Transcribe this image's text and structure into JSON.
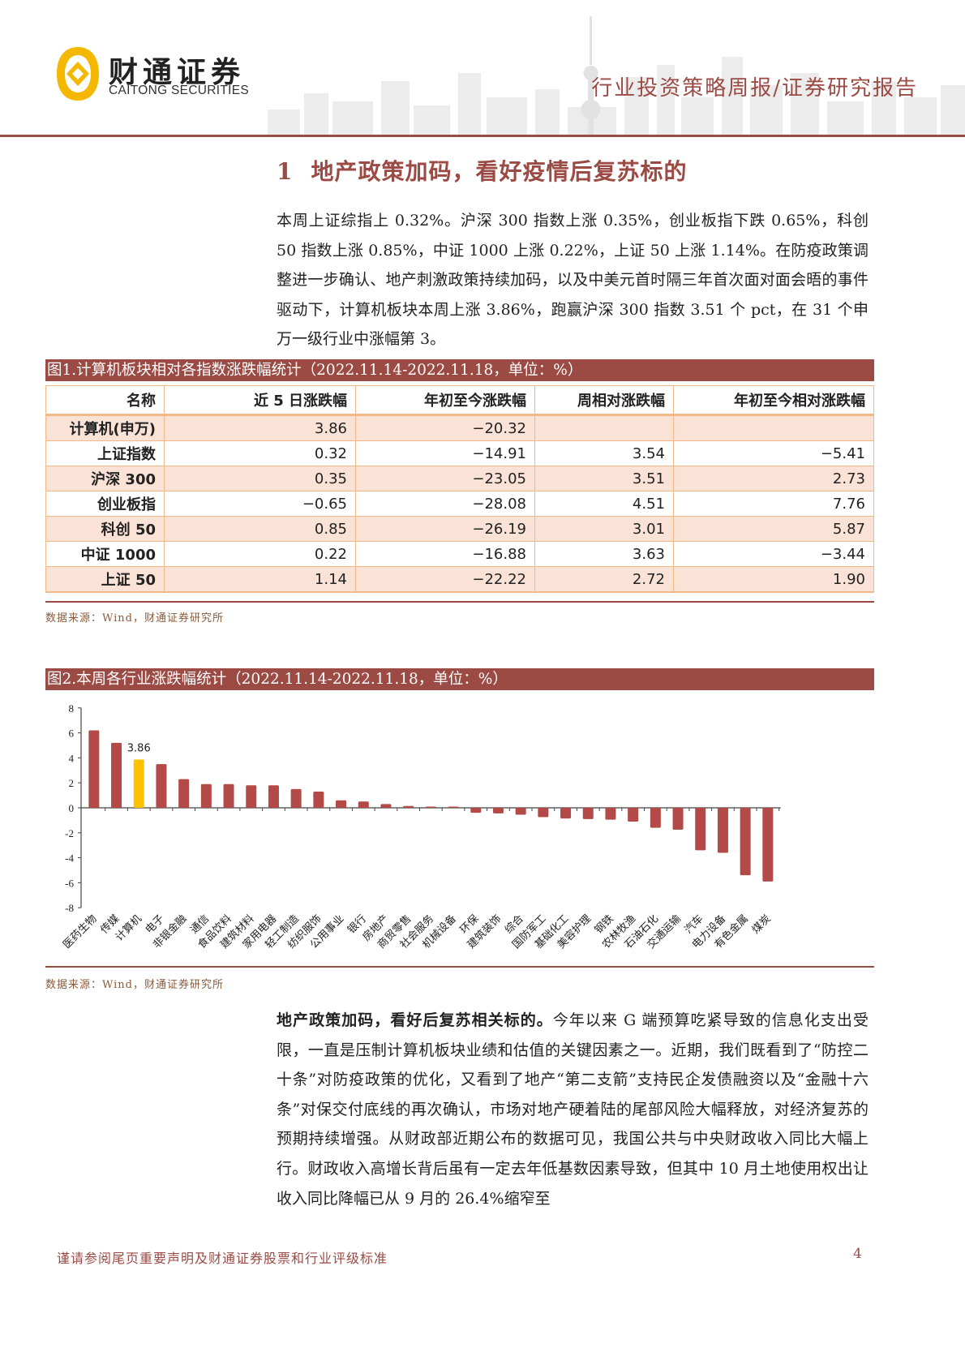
{
  "header": {
    "logo_cn": "财通证券",
    "logo_en": "CAITONG SECURITIES",
    "report_type": "行业投资策略周报/证券研究报告",
    "colors": {
      "brand_red": "#9b4a44",
      "logo_yellow": "#f5b800"
    }
  },
  "section": {
    "number": "1",
    "title": "地产政策加码，看好疫情后复苏标的"
  },
  "paragraph1": "本周上证综指上 0.32%。沪深 300 指数上涨 0.35%，创业板指下跌 0.65%，科创 50 指数上涨 0.85%，中证 1000 上涨 0.22%，上证 50 上涨 1.14%。在防疫政策调整进一步确认、地产刺激政策持续加码，以及中美元首时隔三年首次面对面会晤的事件驱动下，计算机板块本周上涨 3.86%，跑赢沪深 300 指数 3.51 个 pct，在 31 个申万一级行业中涨幅第 3。",
  "figure1": {
    "title": "图1.计算机板块相对各指数涨跌幅统计（2022.11.14-2022.11.18，单位：%）",
    "columns": [
      "名称",
      "近 5 日涨跌幅",
      "年初至今涨跌幅",
      "周相对涨跌幅",
      "年初至今相对涨跌幅"
    ],
    "rows": [
      [
        "计算机(申万)",
        "3.86",
        "−20.32",
        "",
        ""
      ],
      [
        "上证指数",
        "0.32",
        "−14.91",
        "3.54",
        "−5.41"
      ],
      [
        "沪深 300",
        "0.35",
        "−23.05",
        "3.51",
        "2.73"
      ],
      [
        "创业板指",
        "−0.65",
        "−28.08",
        "4.51",
        "7.76"
      ],
      [
        "科创 50",
        "0.85",
        "−26.19",
        "3.01",
        "5.87"
      ],
      [
        "中证 1000",
        "0.22",
        "−16.88",
        "3.63",
        "−3.44"
      ],
      [
        "上证 50",
        "1.14",
        "−22.22",
        "2.72",
        "1.90"
      ]
    ],
    "source": "数据来源：Wind，财通证券研究所"
  },
  "figure2": {
    "title": "图2.本周各行业涨跌幅统计（2022.11.14-2022.11.18，单位：%）",
    "source": "数据来源：Wind，财通证券研究所",
    "highlight_label": "3.86",
    "bar_color": "#b34a47",
    "highlight_color": "#ffc000"
  },
  "chart_data": {
    "type": "bar",
    "title": "本周各行业涨跌幅统计（2022.11.14-2022.11.18，单位：%）",
    "xlabel": "",
    "ylabel": "",
    "ylim": [
      -8,
      8
    ],
    "yticks": [
      8,
      6,
      4,
      2,
      0,
      -2,
      -4,
      -6,
      -8
    ],
    "grid": false,
    "legend": "none",
    "categories": [
      "医药生物",
      "传媒",
      "计算机",
      "电子",
      "非银金融",
      "通信",
      "食品饮料",
      "建筑材料",
      "家用电器",
      "轻工制造",
      "纺织服饰",
      "公用事业",
      "银行",
      "房地产",
      "商贸零售",
      "社会服务",
      "机械设备",
      "环保",
      "建筑装饰",
      "综合",
      "国防军工",
      "基础化工",
      "美容护理",
      "钢铁",
      "农林牧渔",
      "石油石化",
      "交通运输",
      "汽车",
      "电力设备",
      "有色金属",
      "煤炭"
    ],
    "values": [
      6.2,
      5.2,
      3.86,
      3.5,
      2.3,
      1.9,
      1.9,
      1.8,
      1.8,
      1.5,
      1.3,
      0.6,
      0.5,
      0.3,
      0.15,
      0.1,
      0.1,
      -0.4,
      -0.45,
      -0.55,
      -0.75,
      -0.85,
      -0.9,
      -0.95,
      -1.1,
      -1.6,
      -1.75,
      -3.4,
      -3.6,
      -5.4,
      -5.9
    ],
    "highlight_index": 2,
    "annotations": [
      {
        "category": "计算机",
        "text": "3.86"
      }
    ]
  },
  "paragraph2": {
    "lead": "地产政策加码，看好后复苏相关标的。",
    "body": "今年以来 G 端预算吃紧导致的信息化支出受限，一直是压制计算机板块业绩和估值的关键因素之一。近期，我们既看到了“防控二十条”对防疫政策的优化，又看到了地产“第二支箭”支持民企发债融资以及“金融十六条”对保交付底线的再次确认，市场对地产硬着陆的尾部风险大幅释放，对经济复苏的预期持续增强。从财政部近期公布的数据可见，我国公共与中央财政收入同比大幅上行。财政收入高增长背后虽有一定去年低基数因素导致，但其中 10 月土地使用权出让收入同比降幅已从 9 月的 26.4%缩窄至"
  },
  "footer": {
    "disclaimer": "谨请参阅尾页重要声明及财通证券股票和行业评级标准",
    "page_number": "4"
  }
}
